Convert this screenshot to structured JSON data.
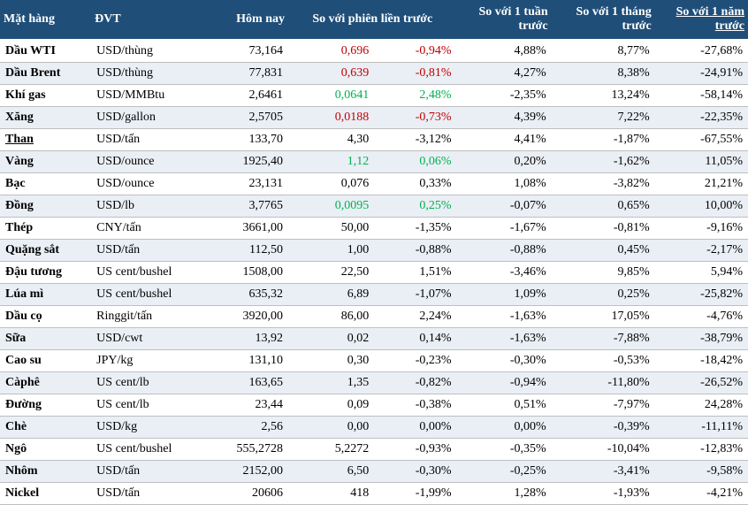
{
  "header": {
    "name": "Mặt hàng",
    "unit": "ĐVT",
    "today": "Hôm nay",
    "prev": "So với phiên liền trước",
    "week": "So với 1 tuần trước",
    "month": "So với 1 tháng trước",
    "year": "So với 1 năm trước"
  },
  "colors": {
    "header_bg": "#1f4e79",
    "header_fg": "#ffffff",
    "alt_row": "#eaeff5",
    "border": "#bfbfbf",
    "red": "#c00000",
    "green": "#00b050"
  },
  "rows": [
    {
      "name": "Dầu WTI",
      "unit": "USD/thùng",
      "today": "73,164",
      "chg": "0,696",
      "chg_c": "red",
      "pct": "-0,94%",
      "pct_c": "red",
      "week": "4,88%",
      "month": "8,77%",
      "year": "-27,68%",
      "alt": false,
      "u": false
    },
    {
      "name": "Dầu Brent",
      "unit": "USD/thùng",
      "today": "77,831",
      "chg": "0,639",
      "chg_c": "red",
      "pct": "-0,81%",
      "pct_c": "red",
      "week": "4,27%",
      "month": "8,38%",
      "year": "-24,91%",
      "alt": true,
      "u": false
    },
    {
      "name": "Khí gas",
      "unit": "USD/MMBtu",
      "today": "2,6461",
      "chg": "0,0641",
      "chg_c": "green",
      "pct": "2,48%",
      "pct_c": "green",
      "week": "-2,35%",
      "month": "13,24%",
      "year": "-58,14%",
      "alt": false,
      "u": false
    },
    {
      "name": "Xăng",
      "unit": "USD/gallon",
      "today": "2,5705",
      "chg": "0,0188",
      "chg_c": "red",
      "pct": "-0,73%",
      "pct_c": "red",
      "week": "4,39%",
      "month": "7,22%",
      "year": "-22,35%",
      "alt": true,
      "u": false
    },
    {
      "name": "Than",
      "unit": "USD/tấn",
      "today": "133,70",
      "chg": "4,30",
      "chg_c": "",
      "pct": "-3,12%",
      "pct_c": "",
      "week": "4,41%",
      "month": "-1,87%",
      "year": "-67,55%",
      "alt": false,
      "u": true
    },
    {
      "name": "Vàng",
      "unit": "USD/ounce",
      "today": "1925,40",
      "chg": "1,12",
      "chg_c": "green",
      "pct": "0,06%",
      "pct_c": "green",
      "week": "0,20%",
      "month": "-1,62%",
      "year": "11,05%",
      "alt": true,
      "u": false
    },
    {
      "name": "Bạc",
      "unit": "USD/ounce",
      "today": "23,131",
      "chg": "0,076",
      "chg_c": "",
      "pct": "0,33%",
      "pct_c": "",
      "week": "1,08%",
      "month": "-3,82%",
      "year": "21,21%",
      "alt": false,
      "u": false
    },
    {
      "name": "Đồng",
      "unit": "USD/lb",
      "today": "3,7765",
      "chg": "0,0095",
      "chg_c": "green",
      "pct": "0,25%",
      "pct_c": "green",
      "week": "-0,07%",
      "month": "0,65%",
      "year": "10,00%",
      "alt": true,
      "u": false
    },
    {
      "name": "Thép",
      "unit": "CNY/tấn",
      "today": "3661,00",
      "chg": "50,00",
      "chg_c": "",
      "pct": "-1,35%",
      "pct_c": "",
      "week": "-1,67%",
      "month": "-0,81%",
      "year": "-9,16%",
      "alt": false,
      "u": false
    },
    {
      "name": "Quặng sắt",
      "unit": "USD/tấn",
      "today": "112,50",
      "chg": "1,00",
      "chg_c": "",
      "pct": "-0,88%",
      "pct_c": "",
      "week": "-0,88%",
      "month": "0,45%",
      "year": "-2,17%",
      "alt": true,
      "u": false
    },
    {
      "name": "Đậu tương",
      "unit": "US cent/bushel",
      "today": "1508,00",
      "chg": "22,50",
      "chg_c": "",
      "pct": "1,51%",
      "pct_c": "",
      "week": "-3,46%",
      "month": "9,85%",
      "year": "5,94%",
      "alt": false,
      "u": false
    },
    {
      "name": "Lúa mì",
      "unit": "US cent/bushel",
      "today": "635,32",
      "chg": "6,89",
      "chg_c": "",
      "pct": "-1,07%",
      "pct_c": "",
      "week": "1,09%",
      "month": "0,25%",
      "year": "-25,82%",
      "alt": true,
      "u": false
    },
    {
      "name": "Dầu cọ",
      "unit": "Ringgit/tấn",
      "today": "3920,00",
      "chg": "86,00",
      "chg_c": "",
      "pct": "2,24%",
      "pct_c": "",
      "week": "-1,63%",
      "month": "17,05%",
      "year": "-4,76%",
      "alt": false,
      "u": false
    },
    {
      "name": "Sữa",
      "unit": "USD/cwt",
      "today": "13,92",
      "chg": "0,02",
      "chg_c": "",
      "pct": "0,14%",
      "pct_c": "",
      "week": "-1,63%",
      "month": "-7,88%",
      "year": "-38,79%",
      "alt": true,
      "u": false
    },
    {
      "name": "Cao su",
      "unit": "JPY/kg",
      "today": "131,10",
      "chg": "0,30",
      "chg_c": "",
      "pct": "-0,23%",
      "pct_c": "",
      "week": "-0,30%",
      "month": "-0,53%",
      "year": "-18,42%",
      "alt": false,
      "u": false
    },
    {
      "name": "Càphê",
      "unit": "US cent/lb",
      "today": "163,65",
      "chg": "1,35",
      "chg_c": "",
      "pct": "-0,82%",
      "pct_c": "",
      "week": "-0,94%",
      "month": "-11,80%",
      "year": "-26,52%",
      "alt": true,
      "u": false
    },
    {
      "name": "Đường",
      "unit": "US cent/lb",
      "today": "23,44",
      "chg": "0,09",
      "chg_c": "",
      "pct": "-0,38%",
      "pct_c": "",
      "week": "0,51%",
      "month": "-7,97%",
      "year": "24,28%",
      "alt": false,
      "u": false
    },
    {
      "name": "Chè",
      "unit": "USD/kg",
      "today": "2,56",
      "chg": "0,00",
      "chg_c": "",
      "pct": "0,00%",
      "pct_c": "",
      "week": "0,00%",
      "month": "-0,39%",
      "year": "-11,11%",
      "alt": true,
      "u": false
    },
    {
      "name": "Ngô",
      "unit": "US cent/bushel",
      "today": "555,2728",
      "chg": "5,2272",
      "chg_c": "",
      "pct": "-0,93%",
      "pct_c": "",
      "week": "-0,35%",
      "month": "-10,04%",
      "year": "-12,83%",
      "alt": false,
      "u": false
    },
    {
      "name": "Nhôm",
      "unit": "USD/tấn",
      "today": "2152,00",
      "chg": "6,50",
      "chg_c": "",
      "pct": "-0,30%",
      "pct_c": "",
      "week": "-0,25%",
      "month": "-3,41%",
      "year": "-9,58%",
      "alt": true,
      "u": false
    },
    {
      "name": "Nickel",
      "unit": "USD/tấn",
      "today": "20606",
      "chg": "418",
      "chg_c": "",
      "pct": "-1,99%",
      "pct_c": "",
      "week": "1,28%",
      "month": "-1,93%",
      "year": "-4,21%",
      "alt": false,
      "u": false
    }
  ]
}
